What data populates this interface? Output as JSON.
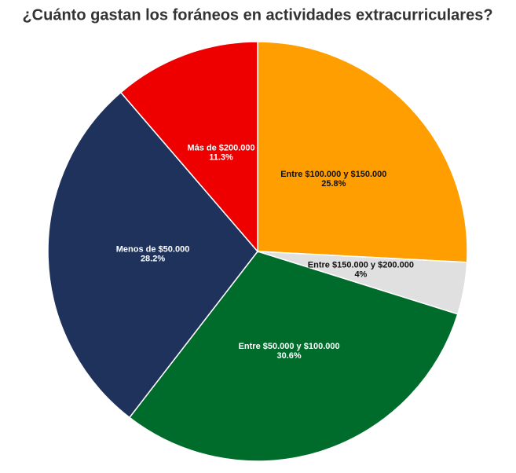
{
  "chart_data": {
    "type": "pie",
    "title": "¿Cuánto gastan los foráneos en actividades extracurriculares?",
    "categories": [
      "Entre $100.000 y $150.000",
      "Entre $150.000 y $200.000",
      "Entre $50.000 y $100.000",
      "Menos de $50.000",
      "Más de $200.000"
    ],
    "values": [
      25.8,
      4,
      30.6,
      28.2,
      11.3
    ],
    "value_labels": [
      "25.8%",
      "4%",
      "30.6%",
      "28.2%",
      "11.3%"
    ],
    "colors": [
      "#ff9e00",
      "#e0e0e0",
      "#006c2b",
      "#1e325c",
      "#ee0000"
    ]
  }
}
